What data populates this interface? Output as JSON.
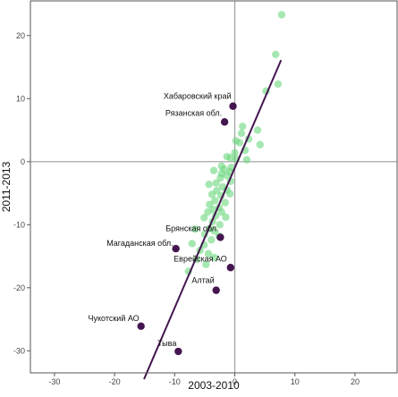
{
  "chart_data": {
    "type": "scatter",
    "title": "",
    "xlabel": "2003-2010",
    "ylabel": "2011-2013",
    "xlim": [
      -34,
      27
    ],
    "ylim": [
      -33.5,
      25.5
    ],
    "x_ticks": [
      -30,
      -20,
      -10,
      0,
      10,
      20
    ],
    "y_ticks": [
      -30,
      -20,
      -10,
      0,
      10,
      20
    ],
    "grid": false,
    "zero_lines": true,
    "colors": {
      "background_point": "#6ad77d",
      "highlight_point": "#43164f",
      "fit_line": "#43164f",
      "zero_line": "#9e9e9e",
      "frame": "#555555"
    },
    "fit_line": {
      "x1": -15.1,
      "y1": -34.5,
      "x2": 7.7,
      "y2": 16.1
    },
    "background_points": [
      {
        "x": 7.8,
        "y": 23.3
      },
      {
        "x": 6.8,
        "y": 17.0
      },
      {
        "x": 7.2,
        "y": 12.3
      },
      {
        "x": 5.2,
        "y": 11.2
      },
      {
        "x": 3.8,
        "y": 5.0
      },
      {
        "x": 1.3,
        "y": 5.6
      },
      {
        "x": 1.1,
        "y": 4.5
      },
      {
        "x": 0.2,
        "y": 3.3
      },
      {
        "x": 0.8,
        "y": 3.0
      },
      {
        "x": 2.3,
        "y": 3.6
      },
      {
        "x": 4.2,
        "y": 2.7
      },
      {
        "x": 1.7,
        "y": 1.8
      },
      {
        "x": 0.0,
        "y": 1.4
      },
      {
        "x": 2.0,
        "y": 0.3
      },
      {
        "x": 0.2,
        "y": 0.4
      },
      {
        "x": -0.7,
        "y": 0.6
      },
      {
        "x": -1.3,
        "y": 0.8
      },
      {
        "x": -2.2,
        "y": -0.7
      },
      {
        "x": -0.6,
        "y": -0.9
      },
      {
        "x": -1.8,
        "y": -1.2
      },
      {
        "x": -0.8,
        "y": -1.6
      },
      {
        "x": -3.5,
        "y": -1.4
      },
      {
        "x": -2.2,
        "y": -1.9
      },
      {
        "x": -1.3,
        "y": -2.2
      },
      {
        "x": -2.4,
        "y": -2.6
      },
      {
        "x": -0.7,
        "y": -3.1
      },
      {
        "x": -3.1,
        "y": -3.4
      },
      {
        "x": -4.3,
        "y": -3.6
      },
      {
        "x": -2.0,
        "y": -4.0
      },
      {
        "x": -3.0,
        "y": -4.6
      },
      {
        "x": -1.3,
        "y": -4.5
      },
      {
        "x": -0.8,
        "y": -5.1
      },
      {
        "x": -3.8,
        "y": -5.2
      },
      {
        "x": -2.3,
        "y": -5.4
      },
      {
        "x": -3.3,
        "y": -6.2
      },
      {
        "x": -1.6,
        "y": -6.5
      },
      {
        "x": -4.2,
        "y": -6.8
      },
      {
        "x": -2.6,
        "y": -7.3
      },
      {
        "x": -3.6,
        "y": -7.6
      },
      {
        "x": -2.2,
        "y": -8.0
      },
      {
        "x": -4.5,
        "y": -8.0
      },
      {
        "x": -3.2,
        "y": -8.6
      },
      {
        "x": -1.5,
        "y": -8.8
      },
      {
        "x": -5.1,
        "y": -8.9
      },
      {
        "x": -3.7,
        "y": -9.5
      },
      {
        "x": -2.5,
        "y": -10.0
      },
      {
        "x": -4.2,
        "y": -10.6
      },
      {
        "x": -6.6,
        "y": -10.7
      },
      {
        "x": -3.4,
        "y": -11.0
      },
      {
        "x": -5.0,
        "y": -11.5
      },
      {
        "x": -2.6,
        "y": -11.8
      },
      {
        "x": -3.9,
        "y": -12.4
      },
      {
        "x": -7.1,
        "y": -13.0
      },
      {
        "x": -5.1,
        "y": -13.2
      },
      {
        "x": -5.8,
        "y": -14.1
      },
      {
        "x": -4.4,
        "y": -14.6
      },
      {
        "x": -6.3,
        "y": -15.5
      },
      {
        "x": -3.4,
        "y": -15.2
      },
      {
        "x": -4.8,
        "y": -16.3
      },
      {
        "x": -7.7,
        "y": -17.4
      }
    ],
    "highlight_points": [
      {
        "label": "Хабаровский край",
        "x": -0.3,
        "y": 8.8
      },
      {
        "label": "Рязанская обл.",
        "x": -1.7,
        "y": 6.3
      },
      {
        "label": "Брянская обл.",
        "x": -2.4,
        "y": -12.0
      },
      {
        "label": "Магаданская обл.",
        "x": -9.8,
        "y": -13.8
      },
      {
        "label": "Еврейская АО",
        "x": -0.7,
        "y": -16.8
      },
      {
        "label": "Алтай",
        "x": -3.1,
        "y": -20.4
      },
      {
        "label": "Чукотский АО",
        "x": -15.6,
        "y": -26.1
      },
      {
        "label": "Тыва",
        "x": -9.4,
        "y": -30.1
      }
    ]
  }
}
